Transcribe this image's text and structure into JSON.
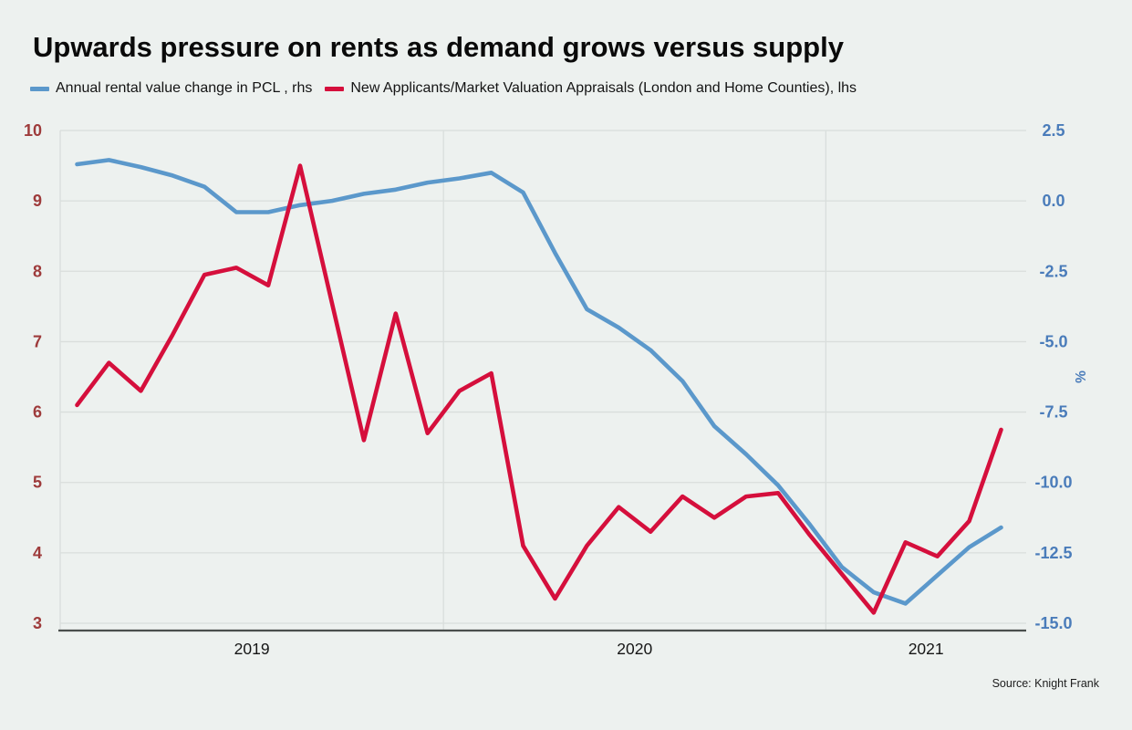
{
  "page": {
    "background": "#edf1ef"
  },
  "chart_data": {
    "type": "line",
    "title": "Upwards pressure on rents as demand grows versus supply",
    "source": "Source: Knight Frank",
    "legend_position": "top",
    "x": [
      "2019-01",
      "2019-02",
      "2019-03",
      "2019-04",
      "2019-05",
      "2019-06",
      "2019-07",
      "2019-08",
      "2019-09",
      "2019-10",
      "2019-11",
      "2019-12",
      "2020-01",
      "2020-02",
      "2020-03",
      "2020-04",
      "2020-05",
      "2020-06",
      "2020-07",
      "2020-08",
      "2020-09",
      "2020-10",
      "2020-11",
      "2020-12",
      "2021-01",
      "2021-02",
      "2021-03",
      "2021-04",
      "2021-05",
      "2021-06"
    ],
    "x_tick_labels": [
      "2019",
      "2020",
      "2021"
    ],
    "series": [
      {
        "name": "Annual rental value change in PCL , rhs",
        "axis": "rhs",
        "color": "#5b98cb",
        "values": [
          1.3,
          1.45,
          1.2,
          0.9,
          0.5,
          -0.4,
          -0.4,
          -0.15,
          0.0,
          0.25,
          0.4,
          0.65,
          0.8,
          1.0,
          0.3,
          -1.85,
          -3.85,
          -4.5,
          -5.3,
          -6.4,
          -8.0,
          -9.0,
          -10.1,
          -11.5,
          -13.0,
          -13.9,
          -14.3,
          -13.3,
          -12.3,
          -11.6
        ]
      },
      {
        "name": "New Applicants/Market Valuation Appraisals (London and Home Counties), lhs",
        "axis": "lhs",
        "color": "#d50f3c",
        "values": [
          6.1,
          6.7,
          6.3,
          7.1,
          7.95,
          8.05,
          7.8,
          9.5,
          7.55,
          5.6,
          7.4,
          5.7,
          6.3,
          6.55,
          4.1,
          3.35,
          4.1,
          4.65,
          4.3,
          4.8,
          4.5,
          4.8,
          4.85,
          4.25,
          3.7,
          3.15,
          4.15,
          3.95,
          4.45,
          5.75
        ]
      }
    ],
    "left_axis": {
      "tick_labels": [
        "10",
        "9",
        "8",
        "7",
        "6",
        "5",
        "4",
        "3"
      ],
      "range": [
        3,
        10
      ],
      "color": "#9e3b3b"
    },
    "right_axis": {
      "tick_labels": [
        "2.5",
        "0.0",
        "-2.5",
        "-5.0",
        "-7.5",
        "-10.0",
        "-12.5",
        "-15.0"
      ],
      "range": [
        -15,
        2.5
      ],
      "label": "%",
      "color": "#4a7cba"
    },
    "grid": {
      "color": "#d9dedc",
      "axis_line_color": "#4a4f4d",
      "vertical_gridlines_at": [
        "2020-01",
        "2021-01"
      ]
    }
  }
}
